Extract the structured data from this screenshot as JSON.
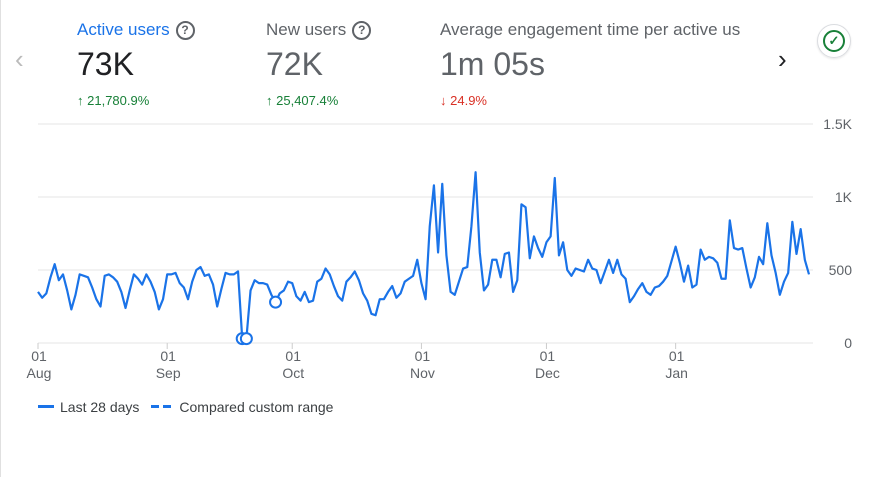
{
  "nav": {
    "prev": "‹",
    "next": "›"
  },
  "metrics": [
    {
      "label": "Active users",
      "value": "73K",
      "change": "21,780.9%",
      "direction": "up",
      "arrow": "↑"
    },
    {
      "label": "New users",
      "value": "72K",
      "change": "25,407.4%",
      "direction": "up",
      "arrow": "↑"
    },
    {
      "label": "Average engagement time per active us",
      "value": "1m 05s",
      "change": "24.9%",
      "direction": "down",
      "arrow": "↓"
    }
  ],
  "help_icon": "?",
  "status_icon": "✓",
  "legend": {
    "series": "Last 28 days",
    "compare": "Compared custom range"
  },
  "colors": {
    "accent": "#1a73e8",
    "up": "#188038",
    "down": "#d93025"
  },
  "chart_data": {
    "type": "line",
    "ylim": [
      0,
      1500
    ],
    "y_ticks": [
      {
        "v": 0,
        "label": "0"
      },
      {
        "v": 500,
        "label": "500"
      },
      {
        "v": 1000,
        "label": "1K"
      },
      {
        "v": 1500,
        "label": "1.5K"
      }
    ],
    "x_ticks": [
      {
        "i": 0,
        "day": "01",
        "month": "Aug"
      },
      {
        "i": 31,
        "day": "01",
        "month": "Sep"
      },
      {
        "i": 61,
        "day": "01",
        "month": "Oct"
      },
      {
        "i": 92,
        "day": "01",
        "month": "Nov"
      },
      {
        "i": 122,
        "day": "01",
        "month": "Dec"
      },
      {
        "i": 153,
        "day": "01",
        "month": "Jan"
      }
    ],
    "markers": [
      49,
      50,
      57
    ],
    "series": [
      {
        "name": "Last 28 days",
        "values": [
          350,
          310,
          340,
          450,
          540,
          430,
          470,
          360,
          230,
          330,
          470,
          460,
          450,
          380,
          300,
          250,
          460,
          470,
          450,
          420,
          350,
          240,
          360,
          470,
          440,
          400,
          470,
          420,
          350,
          230,
          300,
          470,
          470,
          480,
          410,
          380,
          300,
          420,
          500,
          520,
          460,
          470,
          400,
          250,
          370,
          480,
          470,
          470,
          490,
          30,
          30,
          360,
          430,
          410,
          410,
          400,
          330,
          280,
          340,
          360,
          420,
          410,
          320,
          290,
          350,
          280,
          290,
          420,
          440,
          510,
          470,
          390,
          320,
          290,
          420,
          450,
          490,
          430,
          340,
          290,
          200,
          190,
          300,
          300,
          350,
          390,
          310,
          340,
          420,
          440,
          460,
          570,
          410,
          300,
          800,
          1080,
          620,
          1090,
          600,
          350,
          330,
          420,
          510,
          520,
          800,
          1170,
          620,
          360,
          400,
          570,
          570,
          450,
          610,
          620,
          350,
          430,
          950,
          930,
          580,
          730,
          650,
          590,
          690,
          730,
          1130,
          600,
          690,
          500,
          460,
          510,
          500,
          490,
          570,
          510,
          500,
          410,
          490,
          570,
          480,
          570,
          470,
          440,
          280,
          320,
          370,
          410,
          350,
          330,
          380,
          390,
          420,
          460,
          560,
          660,
          550,
          420,
          530,
          380,
          400,
          640,
          570,
          590,
          580,
          550,
          440,
          440,
          840,
          650,
          640,
          650,
          510,
          380,
          450,
          590,
          540,
          820,
          600,
          480,
          330,
          420,
          480,
          830,
          610,
          780,
          570,
          470
        ]
      }
    ]
  }
}
